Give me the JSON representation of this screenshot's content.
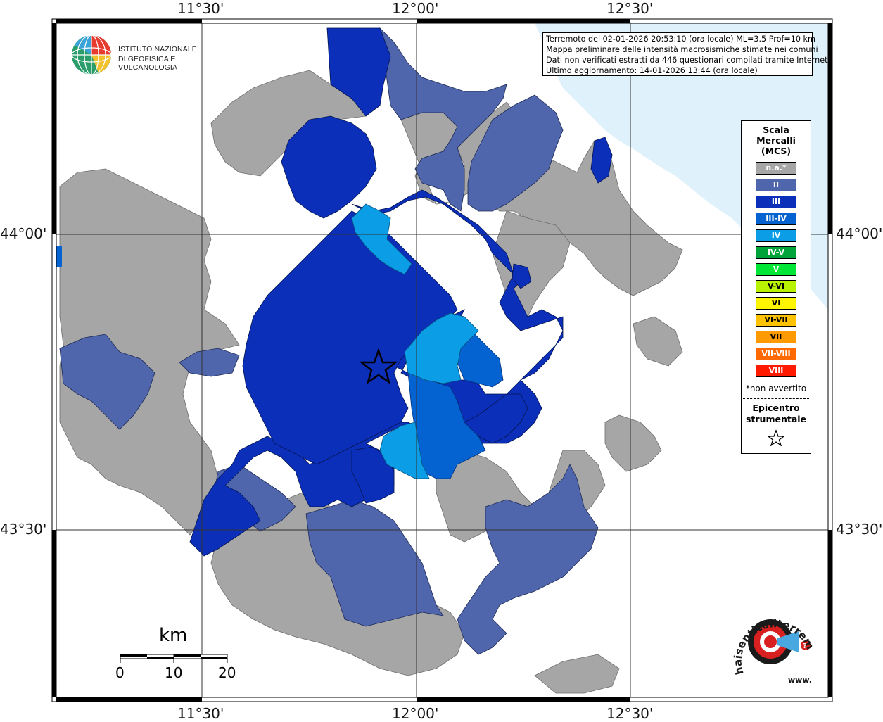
{
  "map": {
    "top_ticks": [
      "11°30'",
      "12°00'",
      "12°30'"
    ],
    "bottom_ticks": [
      "11°30'",
      "12°00'",
      "12°30'"
    ],
    "left_ticks": [
      "44°00'",
      "43°30'"
    ],
    "right_ticks": [
      "44°00'",
      "43°30'"
    ],
    "colors": {
      "na": "#a6a6a6",
      "II": "#4f66ad",
      "III": "#0b2fb8",
      "III-IV": "#0563d1",
      "IV": "#0b9de6",
      "sea": "#dff1fb",
      "land_blank": "#ffffff"
    }
  },
  "logo": {
    "line1": "ISTITUTO NAZIONALE",
    "line2": "DI GEOFISICA E VULCANOLOGIA"
  },
  "info": {
    "line1": "Terremoto del 02-01-2026 20:53:10 (ora locale) ML=3.5 Prof=10 km",
    "line2": "Mappa preliminare delle intensità macrosismiche stimate nei comuni",
    "line3": "Dati non verificati estratti da 446 questionari compilati tramite Internet.",
    "line4": "Ultimo aggiornamento: 14-01-2026 13:44 (ora locale)"
  },
  "legend": {
    "title1": "Scala",
    "title2": "Mercalli",
    "title3": "(MCS)",
    "items": [
      {
        "label": "n.a.*",
        "color": "#a6a6a6"
      },
      {
        "label": "II",
        "color": "#4f66ad"
      },
      {
        "label": "III",
        "color": "#0b2fb8"
      },
      {
        "label": "III-IV",
        "color": "#0563d1"
      },
      {
        "label": "IV",
        "color": "#0b9de6"
      },
      {
        "label": "IV-V",
        "color": "#00a33a"
      },
      {
        "label": "V",
        "color": "#00e636"
      },
      {
        "label": "V-VI",
        "color": "#b9f200"
      },
      {
        "label": "VI",
        "color": "#fff500"
      },
      {
        "label": "VI-VII",
        "color": "#ffc200"
      },
      {
        "label": "VII",
        "color": "#ff9b00"
      },
      {
        "label": "VII-VIII",
        "color": "#ff6a00"
      },
      {
        "label": "VIII",
        "color": "#ff1a00"
      }
    ],
    "note": "*non avvertito",
    "epi1": "Epicentro",
    "epi2": "strumentale"
  },
  "scalebar": {
    "title": "km",
    "labels": [
      "0",
      "10",
      "20"
    ]
  },
  "brand": {
    "text": "haisentitoilterremoto.it",
    "url_prefix": "www."
  }
}
